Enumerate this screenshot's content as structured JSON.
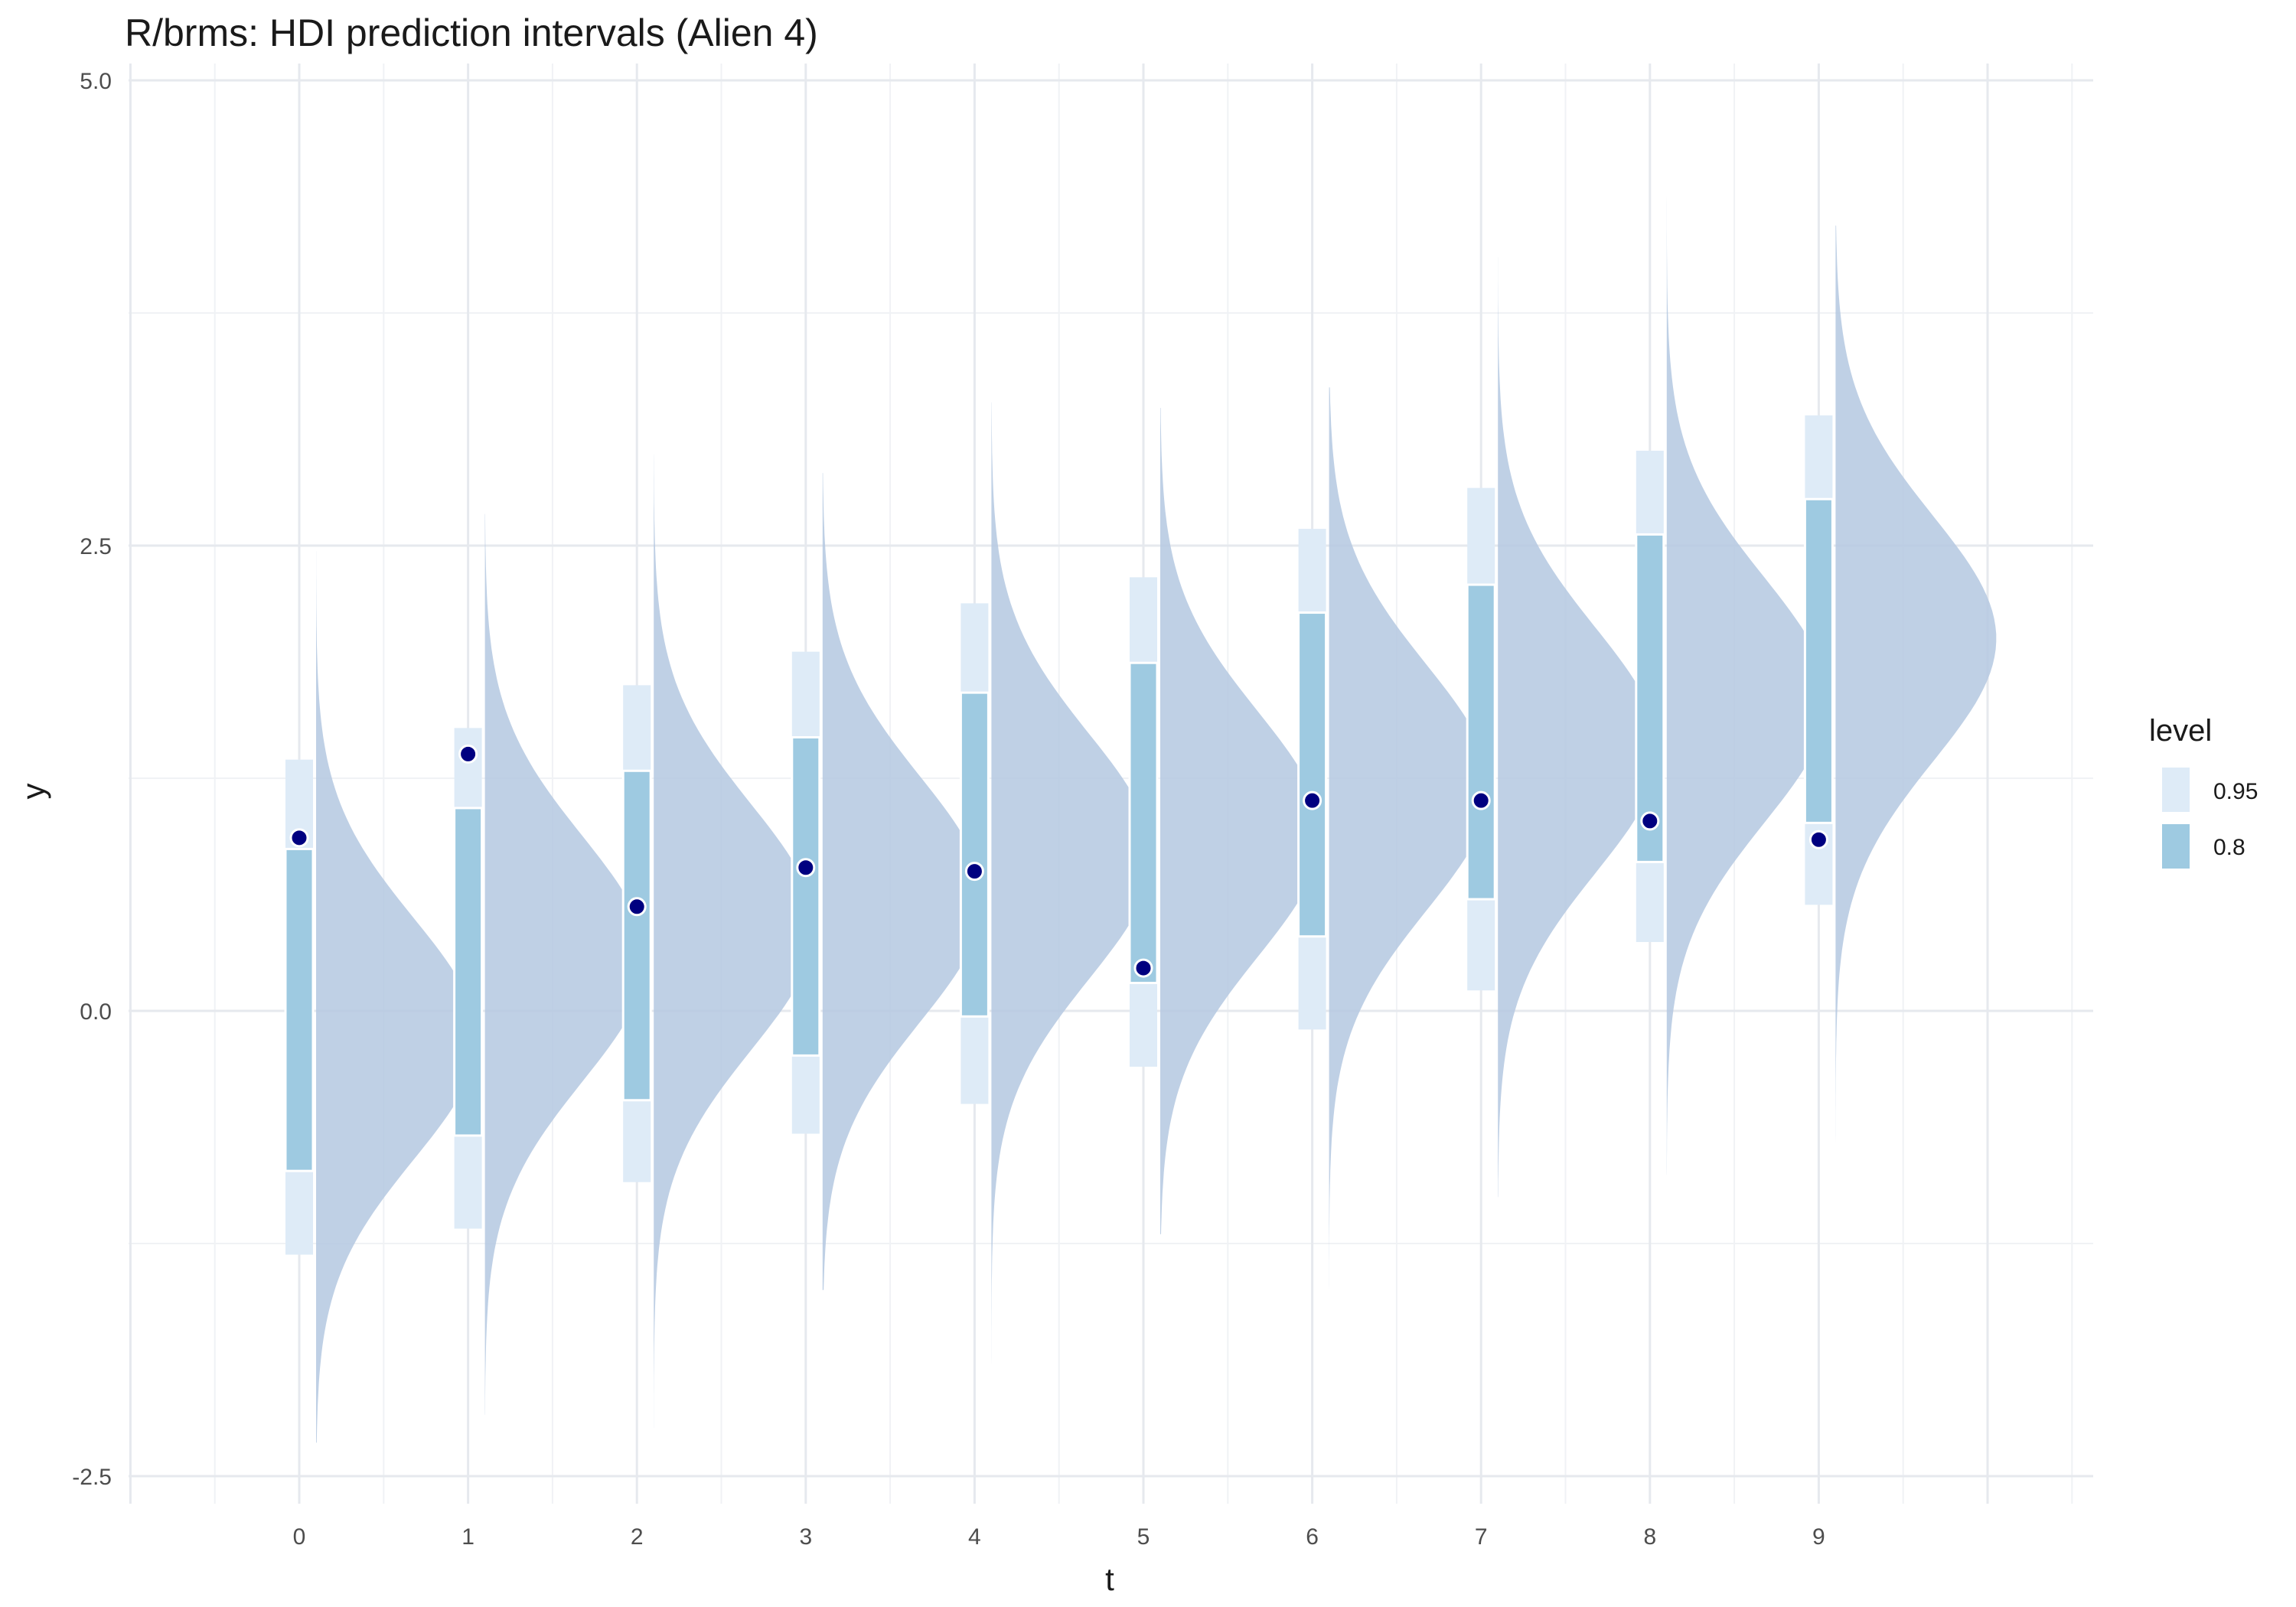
{
  "chart_data": {
    "type": "interval-halfeye",
    "title": "R/brms: HDI prediction intervals (Alien 4)",
    "xlabel": "t",
    "ylabel": "y",
    "x_ticks": [
      "0",
      "1",
      "2",
      "3",
      "4",
      "5",
      "6",
      "7",
      "8",
      "9"
    ],
    "y_ticks": [
      {
        "value": -2.5,
        "label": "-2.5"
      },
      {
        "value": 0,
        "label": "0.0"
      },
      {
        "value": 2.5,
        "label": "2.5"
      },
      {
        "value": 5,
        "label": "5.0"
      }
    ],
    "xlim": [
      -1,
      10.6
    ],
    "ylim": [
      -2.5,
      5.0
    ],
    "grid": true,
    "legend": {
      "title": "level",
      "position": "right",
      "items": [
        {
          "label": "0.95",
          "color": "#deebf7"
        },
        {
          "label": "0.8",
          "color": "#9ecae1"
        }
      ]
    },
    "colors": {
      "density": "#b4c8e0",
      "point": "#000080",
      "interval_95": "#deebf7",
      "interval_80": "#9ecae1"
    },
    "points": [
      {
        "t": 0,
        "y": 0.93,
        "i95": [
          -1.31,
          1.35
        ],
        "i80": [
          -0.86,
          0.87
        ],
        "dens_mean": -0.15,
        "dens_sd": 0.65,
        "dens_range": [
          -2.32,
          2.47
        ]
      },
      {
        "t": 1,
        "y": 1.38,
        "i95": [
          -1.17,
          1.52
        ],
        "i80": [
          -0.67,
          1.09
        ],
        "dens_mean": 0.28,
        "dens_sd": 0.66,
        "dens_range": [
          -2.17,
          2.67
        ]
      },
      {
        "t": 2,
        "y": 0.56,
        "i95": [
          -0.92,
          1.75
        ],
        "i80": [
          -0.48,
          1.29
        ],
        "dens_mean": 0.45,
        "dens_sd": 0.66,
        "dens_range": [
          -2.24,
          2.99
        ]
      },
      {
        "t": 3,
        "y": 0.77,
        "i95": [
          -0.66,
          1.93
        ],
        "i80": [
          -0.24,
          1.47
        ],
        "dens_mean": 0.6,
        "dens_sd": 0.66,
        "dens_range": [
          -1.5,
          2.89
        ]
      },
      {
        "t": 4,
        "y": 0.75,
        "i95": [
          -0.5,
          2.19
        ],
        "i80": [
          -0.03,
          1.71
        ],
        "dens_mean": 0.83,
        "dens_sd": 0.66,
        "dens_range": [
          -2.13,
          3.27
        ]
      },
      {
        "t": 5,
        "y": 0.23,
        "i95": [
          -0.3,
          2.33
        ],
        "i80": [
          0.15,
          1.87
        ],
        "dens_mean": 0.95,
        "dens_sd": 0.66,
        "dens_range": [
          -1.2,
          3.24
        ]
      },
      {
        "t": 6,
        "y": 1.13,
        "i95": [
          -0.1,
          2.59
        ],
        "i80": [
          0.4,
          2.14
        ],
        "dens_mean": 1.2,
        "dens_sd": 0.66,
        "dens_range": [
          -1.55,
          3.35
        ]
      },
      {
        "t": 7,
        "y": 1.13,
        "i95": [
          0.11,
          2.81
        ],
        "i80": [
          0.6,
          2.29
        ],
        "dens_mean": 1.4,
        "dens_sd": 0.66,
        "dens_range": [
          -1.0,
          4.05
        ]
      },
      {
        "t": 8,
        "y": 1.02,
        "i95": [
          0.37,
          3.01
        ],
        "i80": [
          0.8,
          2.56
        ],
        "dens_mean": 1.67,
        "dens_sd": 0.66,
        "dens_range": [
          -0.88,
          4.47
        ]
      },
      {
        "t": 9,
        "y": 0.92,
        "i95": [
          0.57,
          3.2
        ],
        "i80": [
          1.01,
          2.75
        ],
        "dens_mean": 2.0,
        "dens_sd": 0.66,
        "dens_range": [
          -0.75,
          4.22
        ]
      }
    ]
  }
}
